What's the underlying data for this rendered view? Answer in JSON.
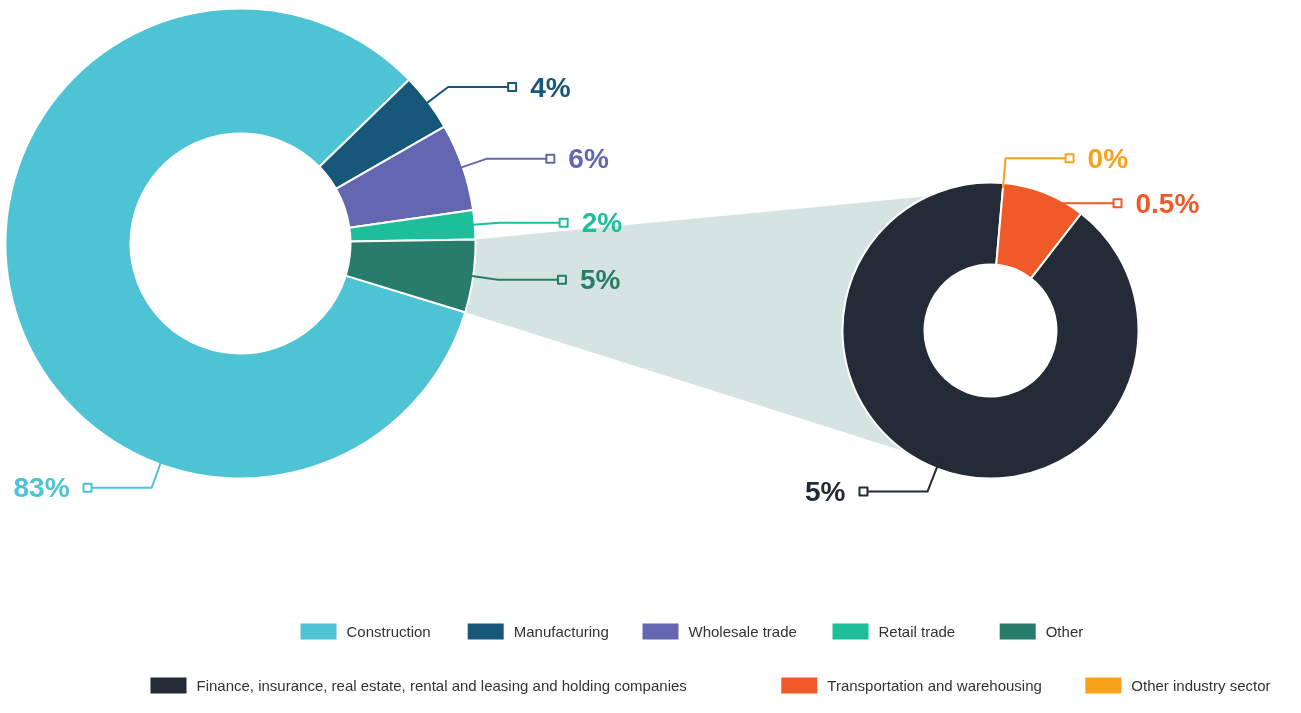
{
  "chart_data": [
    {
      "type": "donut",
      "categories": [
        "Construction",
        "Manufacturing",
        "Wholesale trade",
        "Retail trade",
        "Other"
      ],
      "values": [
        83,
        4,
        6,
        2,
        5
      ],
      "value_labels": [
        "83%",
        "4%",
        "6%",
        "2%",
        "5%"
      ],
      "colors": [
        "#4dc3d3",
        "#17587a",
        "#6366b0",
        "#1dbf9a",
        "#277c6b"
      ],
      "legend": "bottom"
    },
    {
      "type": "donut",
      "categories": [
        "Finance, insurance, real estate, rental and leasing and holding companies",
        "Transportation and warehousing",
        "Other industry sector"
      ],
      "values": [
        5,
        0.5,
        0
      ],
      "value_labels": [
        "5%",
        "0.5%",
        "0%"
      ],
      "colors": [
        "#232b36",
        "#f05a28",
        "#f9a11b"
      ],
      "legend": "bottom"
    }
  ]
}
